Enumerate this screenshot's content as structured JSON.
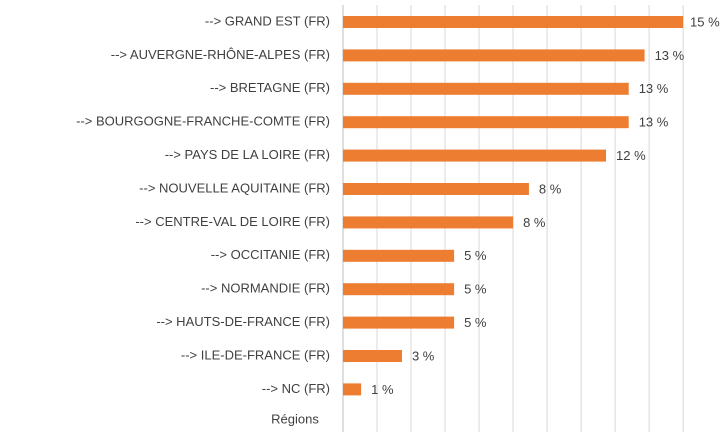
{
  "chart_data": {
    "type": "bar",
    "orientation": "horizontal",
    "y_axis_title": "Régions",
    "categories": [
      "--> GRAND EST (FR)",
      "--> AUVERGNE-RHÔNE-ALPES (FR)",
      "--> BRETAGNE (FR)",
      "--> BOURGOGNE-FRANCHE-COMTE (FR)",
      "--> PAYS DE LA LOIRE (FR)",
      "--> NOUVELLE AQUITAINE (FR)",
      "--> CENTRE-VAL DE LOIRE (FR)",
      "--> OCCITANIE (FR)",
      "--> NORMANDIE (FR)",
      "--> HAUTS-DE-FRANCE (FR)",
      "--> ILE-DE-FRANCE (FR)",
      "--> NC (FR)"
    ],
    "values": [
      15,
      13.3,
      12.6,
      12.6,
      11.6,
      8.2,
      7.5,
      4.9,
      4.9,
      4.9,
      2.6,
      0.8
    ],
    "value_labels": [
      "15 %",
      "13 %",
      "13 %",
      "13 %",
      "12 %",
      "8 %",
      "8 %",
      "5 %",
      "5 %",
      "5 %",
      "3 %",
      "1 %"
    ],
    "color": "#ed7d31",
    "xlim": [
      0,
      15.7
    ],
    "xticks": [
      0,
      1.5,
      3,
      4.5,
      6,
      7.5,
      9,
      10.5,
      12,
      13.5,
      15
    ],
    "grid": true
  }
}
